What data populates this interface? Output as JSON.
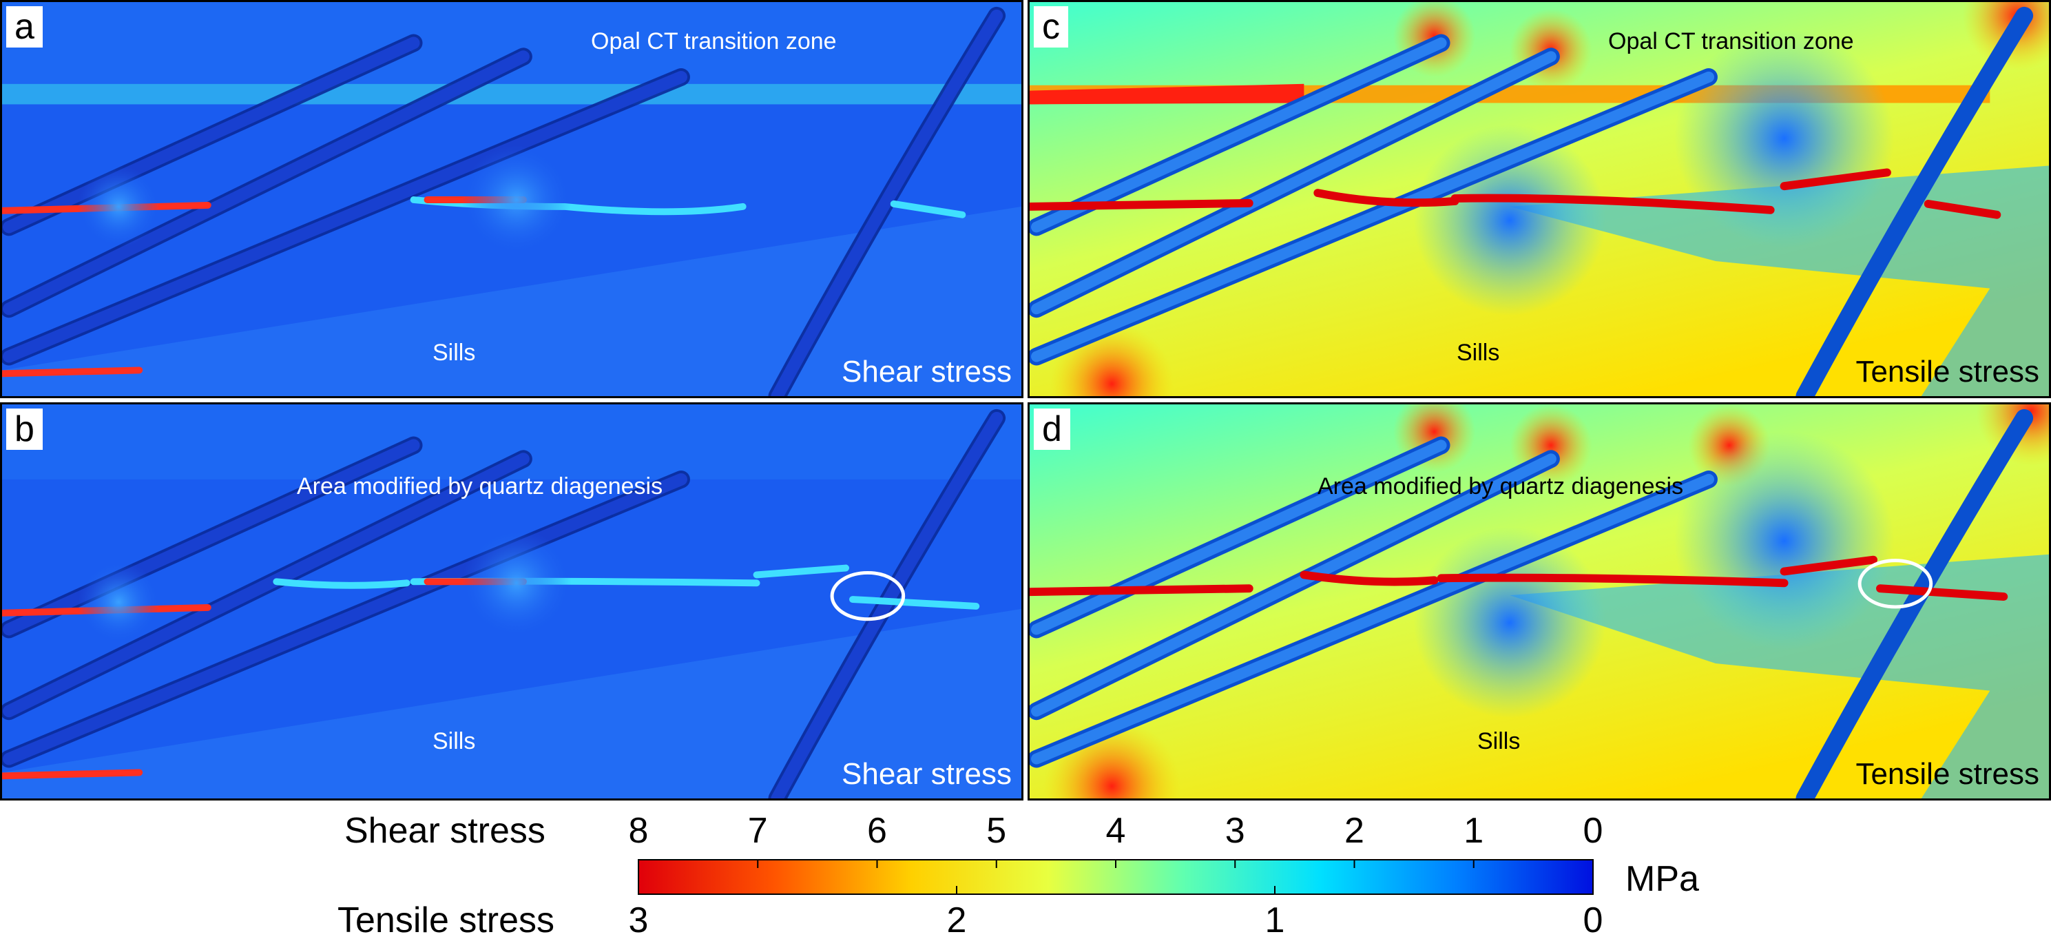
{
  "panels": [
    {
      "letter": "a",
      "corner": "Shear stress",
      "annotation": "Opal CT transition zone",
      "sills": "Sills",
      "theme": "shear"
    },
    {
      "letter": "c",
      "corner": "Tensile stress",
      "annotation": "Opal CT transition zone",
      "sills": "Sills",
      "theme": "tensile"
    },
    {
      "letter": "b",
      "corner": "Shear stress",
      "annotation": "Area modified by quartz diagenesis",
      "sills": "Sills",
      "theme": "shear"
    },
    {
      "letter": "d",
      "corner": "Tensile stress",
      "annotation": "Area modified by quartz diagenesis",
      "sills": "Sills",
      "theme": "tensile"
    }
  ],
  "colorbar": {
    "shear_title": "Shear stress",
    "tensile_title": "Tensile stress",
    "unit": "MPa",
    "shear_ticks": [
      "8",
      "7",
      "6",
      "5",
      "4",
      "3",
      "2",
      "1",
      "0"
    ],
    "tensile_ticks": [
      "3",
      "2",
      "1",
      "0"
    ],
    "colors": [
      "#e0000a",
      "#ff5500",
      "#ffd000",
      "#e8ff40",
      "#60ffb0",
      "#00e0ff",
      "#0080ff",
      "#0010e0"
    ]
  },
  "theme_colors": {
    "shear_bg": "#1a5cf0",
    "shear_text": "#ffffff",
    "tensile_bg": "#38d8e8",
    "tensile_text": "#000000"
  }
}
